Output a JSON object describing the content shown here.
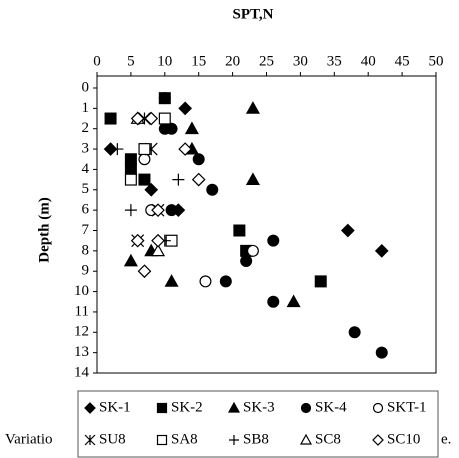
{
  "chart_data": {
    "type": "scatter",
    "title": "SPT,N",
    "y_label": "Depth (m)",
    "xlim": [
      0,
      50
    ],
    "xticks": [
      0,
      5,
      10,
      15,
      20,
      25,
      30,
      35,
      40,
      45,
      50
    ],
    "ylim": [
      0,
      14
    ],
    "yticks": [
      0,
      1,
      2,
      3,
      4,
      5,
      6,
      7,
      8,
      9,
      10,
      11,
      12,
      13,
      14
    ],
    "y_reversed": true,
    "x_axis_top": true,
    "series": [
      {
        "name": "SK-1",
        "marker": "diamond",
        "filled": true,
        "color": "#000000",
        "x": [
          13,
          2,
          8,
          12,
          37,
          42
        ],
        "y": [
          1,
          3,
          5,
          6,
          7,
          8
        ]
      },
      {
        "name": "SK-2",
        "marker": "square",
        "filled": true,
        "color": "#000000",
        "x": [
          2,
          10,
          5,
          5,
          7,
          21,
          22,
          33
        ],
        "y": [
          1.5,
          0.5,
          3.5,
          4,
          4.5,
          7,
          8,
          9.5
        ]
      },
      {
        "name": "SK-3",
        "marker": "triangle",
        "filled": true,
        "color": "#000000",
        "x": [
          23,
          14,
          14,
          23,
          8,
          5,
          11,
          29
        ],
        "y": [
          1,
          2,
          3,
          4.5,
          8,
          8.5,
          9.5,
          10.5
        ]
      },
      {
        "name": "SK-4",
        "marker": "circle",
        "filled": true,
        "color": "#000000",
        "x": [
          10,
          10,
          11,
          15,
          17,
          11,
          26,
          22,
          19,
          26,
          38,
          42
        ],
        "y": [
          0.5,
          2,
          2,
          3.5,
          5,
          6,
          7.5,
          8.5,
          9.5,
          10.5,
          12,
          13
        ]
      },
      {
        "name": "SKT-1",
        "marker": "circle",
        "filled": false,
        "color": "#000000",
        "x": [
          7,
          8,
          23,
          16
        ],
        "y": [
          3.5,
          6,
          8,
          9.5
        ]
      },
      {
        "name": "SU8",
        "marker": "asterisk",
        "filled": false,
        "color": "#000000",
        "x": [
          7,
          8,
          6,
          9
        ],
        "y": [
          1.5,
          3,
          7.5,
          6
        ]
      },
      {
        "name": "SA8",
        "marker": "square",
        "filled": false,
        "color": "#000000",
        "x": [
          7,
          5,
          10,
          11
        ],
        "y": [
          3,
          4.5,
          1.5,
          7.5
        ]
      },
      {
        "name": "SB8",
        "marker": "plus",
        "filled": false,
        "color": "#000000",
        "x": [
          3,
          5,
          12,
          10
        ],
        "y": [
          3,
          6,
          4.5,
          7.5
        ]
      },
      {
        "name": "SC8",
        "marker": "triangle",
        "filled": false,
        "color": "#000000",
        "x": [
          6,
          9
        ],
        "y": [
          1.5,
          8
        ]
      },
      {
        "name": "SC10",
        "marker": "diamond",
        "filled": false,
        "color": "#000000",
        "x": [
          6,
          13,
          15,
          7,
          6,
          9,
          9,
          8
        ],
        "y": [
          1.5,
          3,
          4.5,
          9,
          7.5,
          7.5,
          6,
          1.5
        ]
      }
    ],
    "caption_left": "Variatio",
    "caption_right": "e."
  }
}
